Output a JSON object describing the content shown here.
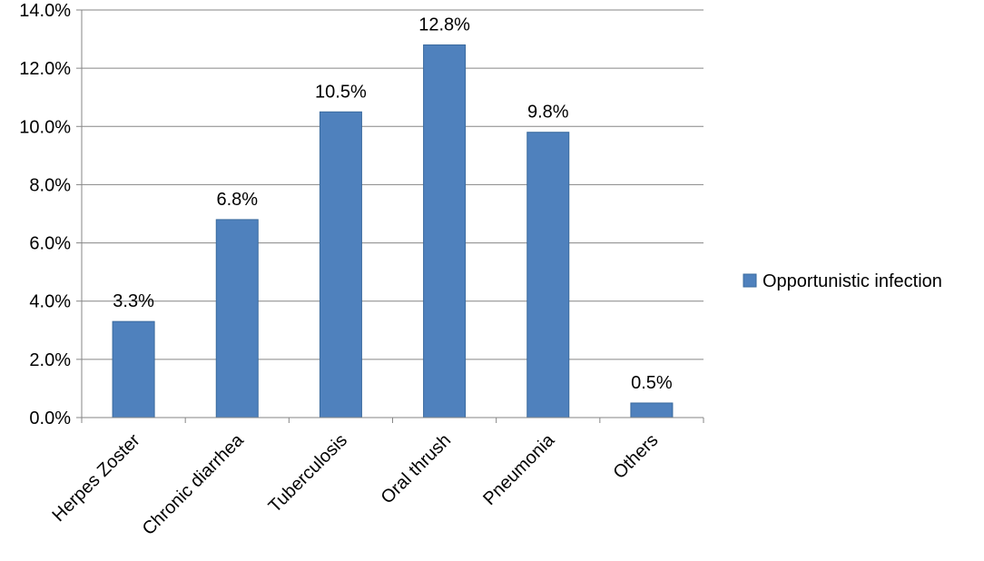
{
  "chart_data": {
    "type": "bar",
    "categories": [
      "Herpes Zoster",
      "Chronic diarrhea",
      "Tuberculosis",
      "Oral thrush",
      "Pneumonia",
      "Others"
    ],
    "series": [
      {
        "name": "Opportunistic infection",
        "values": [
          3.3,
          6.8,
          10.5,
          12.8,
          9.8,
          0.5
        ],
        "color": "#4F81BD"
      }
    ],
    "data_labels": [
      "3.3%",
      "6.8%",
      "10.5%",
      "12.8%",
      "9.8%",
      "0.5%"
    ],
    "y_tick_labels": [
      "0.0%",
      "2.0%",
      "4.0%",
      "6.0%",
      "8.0%",
      "10.0%",
      "12.0%",
      "14.0%"
    ],
    "ylim": [
      0,
      14
    ],
    "y_step": 2,
    "grid": true,
    "legend_position": "right",
    "title": "",
    "xlabel": "",
    "ylabel": ""
  }
}
